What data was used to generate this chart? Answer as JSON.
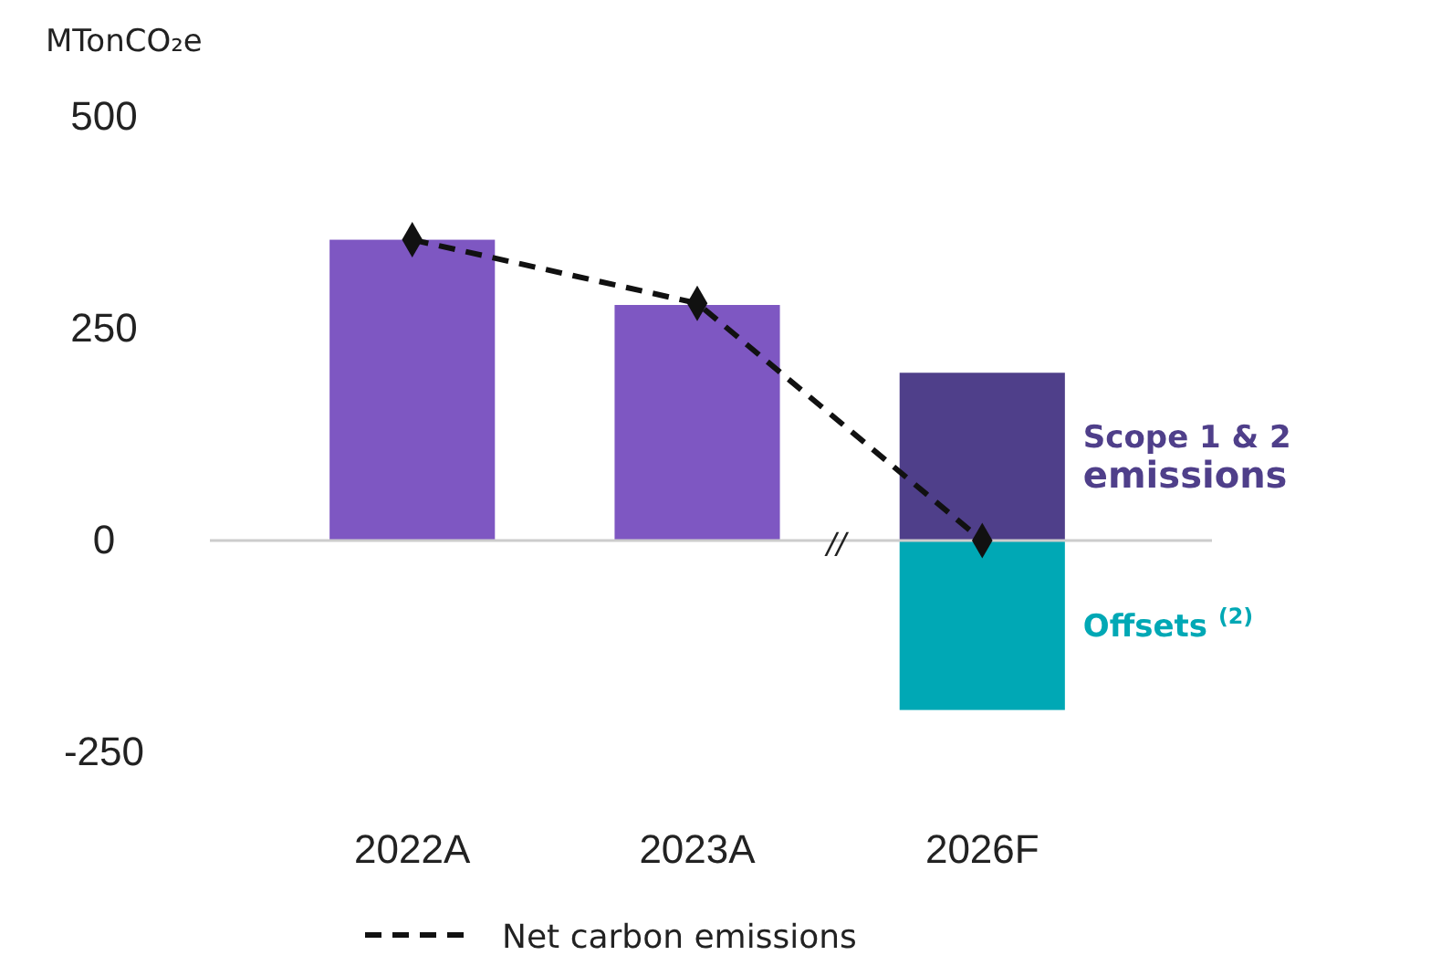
{
  "chart_data": {
    "type": "bar",
    "stacked": true,
    "ylabel": "MTonCO₂e",
    "categories": [
      "2022A",
      "2023A",
      "2026F"
    ],
    "ylim": [
      -250,
      500
    ],
    "yticks": [
      -250,
      0,
      250,
      500
    ],
    "legend": "bottom",
    "annotations": [
      "//"
    ],
    "series": [
      {
        "name": "Scope 1 & 2 emissions",
        "colors": [
          "#7e57c2",
          "#7e57c2",
          "#4f3f8a"
        ],
        "values": [
          355,
          278,
          198
        ]
      },
      {
        "name": "Offsets $^{(2)}$",
        "color": "#00a8b5",
        "values": [
          null,
          null,
          -200
        ]
      },
      {
        "name": "Net carbon emissions",
        "type": "line",
        "color": "#111111",
        "line_style": "dashed",
        "marker": "diamond",
        "values": [
          355,
          280,
          0
        ]
      }
    ]
  }
}
